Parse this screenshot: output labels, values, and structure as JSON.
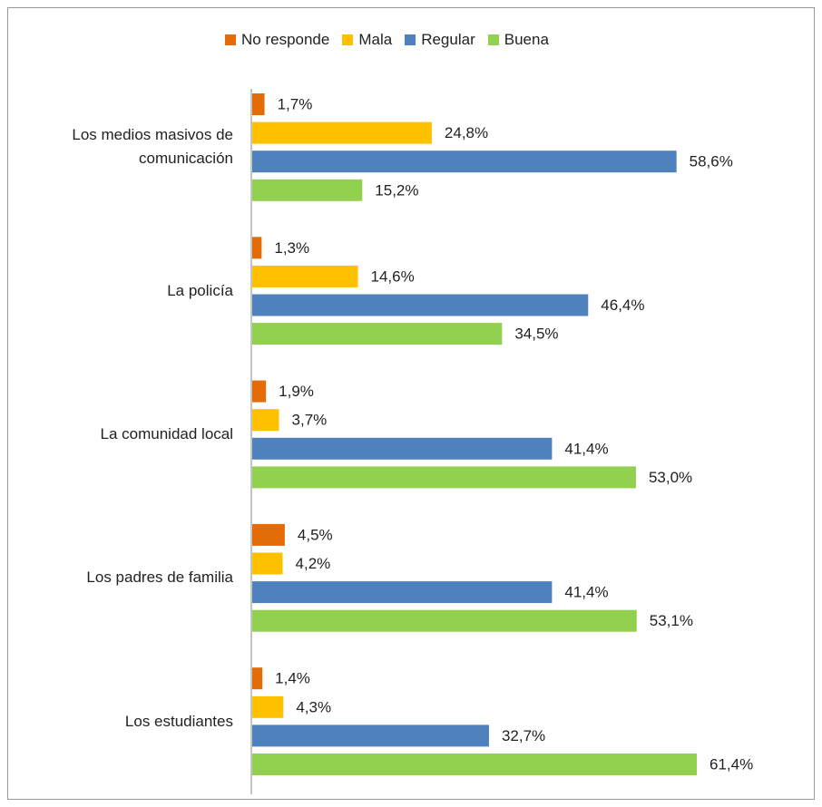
{
  "chart_data": {
    "type": "bar",
    "orientation": "horizontal",
    "categories": [
      "Los medios masivos de comunicación",
      "La policía",
      "La comunidad local",
      "Los padres de familia",
      "Los estudiantes"
    ],
    "series": [
      {
        "name": "No responde",
        "color": "#e36c09",
        "values": [
          1.7,
          1.3,
          1.9,
          4.5,
          1.4
        ],
        "value_labels": [
          "1,7%",
          "1,3%",
          "1,9%",
          "4,5%",
          "1,4%"
        ]
      },
      {
        "name": "Mala",
        "color": "#ffc000",
        "values": [
          24.8,
          14.6,
          3.7,
          4.2,
          4.3
        ],
        "value_labels": [
          "24,8%",
          "14,6%",
          "3,7%",
          "4,2%",
          "4,3%"
        ]
      },
      {
        "name": "Regular",
        "color": "#4f81bd",
        "values": [
          58.6,
          46.4,
          41.4,
          41.4,
          32.7
        ],
        "value_labels": [
          "58,6%",
          "46,4%",
          "41,4%",
          "41,4%",
          "32,7%"
        ]
      },
      {
        "name": "Buena",
        "color": "#92d050",
        "values": [
          15.2,
          34.5,
          53.0,
          53.1,
          61.4
        ],
        "value_labels": [
          "15,2%",
          "34,5%",
          "53,0%",
          "53,1%",
          "61,4%"
        ]
      }
    ],
    "legend": "top"
  }
}
